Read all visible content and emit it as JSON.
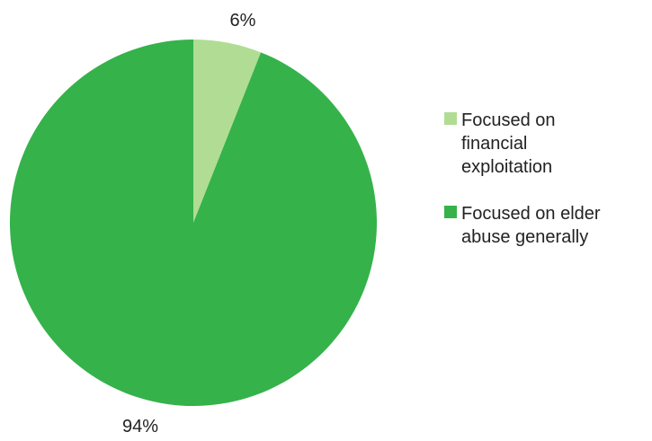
{
  "chart_data": {
    "type": "pie",
    "categories": [
      "Focused on financial exploitation",
      "Focused on elder abuse generally"
    ],
    "values": [
      6,
      94
    ],
    "data_labels": [
      "6%",
      "94%"
    ],
    "colors": [
      "#b0dd93",
      "#35b24a"
    ],
    "start_angle": "12 o'clock",
    "direction": "clockwise",
    "title": "",
    "legend_position": "right"
  },
  "legend": {
    "items": [
      {
        "label_line1": "Focused on",
        "label_line2": "financial",
        "label_line3": "exploitation",
        "color": "#b0dd93"
      },
      {
        "label_line1": "Focused on elder",
        "label_line2": "abuse generally",
        "label_line3": "",
        "color": "#35b24a"
      }
    ]
  }
}
